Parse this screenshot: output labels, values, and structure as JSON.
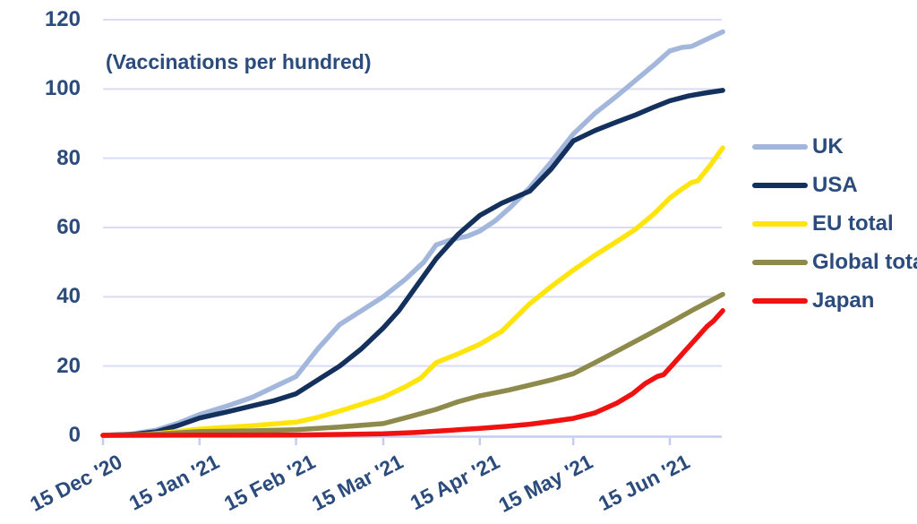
{
  "annotation": "(Vaccinations per hundred)",
  "colors": {
    "text": "#2A4B7C",
    "grid": "#D9DCF5",
    "axis": "#C7CBEE",
    "background": "#FFFFFF"
  },
  "chart_data": {
    "type": "line",
    "title": "(Vaccinations per hundred)",
    "ylabel": "Vaccinations per hundred",
    "xlabel": "",
    "ylim": [
      0,
      120
    ],
    "yticks": [
      0,
      20,
      40,
      60,
      80,
      100,
      120
    ],
    "grid": "horizontal",
    "legend_position": "right",
    "x_unit": "days since 15 Dec 2020",
    "x_tick_days": [
      0,
      31,
      62,
      90,
      121,
      151,
      182
    ],
    "x_tick_labels": [
      "15 Dec '20",
      "15 Jan '21",
      "15 Feb '21",
      "15 Mar '21",
      "15 Apr '21",
      "15 May '21",
      "15 Jun '21"
    ],
    "x_range_days": [
      0,
      199
    ],
    "series": [
      {
        "name": "UK",
        "color": "#A3B7DC",
        "points": [
          [
            0,
            0
          ],
          [
            8,
            0.2
          ],
          [
            17,
            1.5
          ],
          [
            24,
            3.5
          ],
          [
            31,
            6
          ],
          [
            40,
            8.5
          ],
          [
            48,
            11
          ],
          [
            55,
            14
          ],
          [
            62,
            17
          ],
          [
            69,
            25
          ],
          [
            76,
            32
          ],
          [
            83,
            36
          ],
          [
            90,
            40
          ],
          [
            97,
            45
          ],
          [
            103,
            50
          ],
          [
            107,
            55
          ],
          [
            112,
            56.5
          ],
          [
            117,
            57.5
          ],
          [
            121,
            59
          ],
          [
            126,
            62
          ],
          [
            131,
            66
          ],
          [
            137,
            71.5
          ],
          [
            144,
            79
          ],
          [
            151,
            87
          ],
          [
            158,
            93
          ],
          [
            165,
            98
          ],
          [
            171,
            102.5
          ],
          [
            177,
            107
          ],
          [
            182,
            111
          ],
          [
            186,
            112
          ],
          [
            189,
            112.3
          ],
          [
            193,
            114
          ],
          [
            199,
            116.5
          ]
        ]
      },
      {
        "name": "USA",
        "color": "#14315E",
        "points": [
          [
            0,
            0
          ],
          [
            10,
            0.3
          ],
          [
            17,
            1
          ],
          [
            24,
            2.8
          ],
          [
            31,
            5
          ],
          [
            40,
            6.8
          ],
          [
            48,
            8.5
          ],
          [
            55,
            10
          ],
          [
            62,
            12
          ],
          [
            69,
            16
          ],
          [
            76,
            20
          ],
          [
            83,
            25
          ],
          [
            90,
            31
          ],
          [
            95,
            36
          ],
          [
            99,
            41
          ],
          [
            103,
            46
          ],
          [
            107,
            51
          ],
          [
            114,
            58
          ],
          [
            121,
            63.5
          ],
          [
            128,
            67
          ],
          [
            137,
            70.5
          ],
          [
            144,
            77
          ],
          [
            151,
            85
          ],
          [
            158,
            88
          ],
          [
            165,
            90.5
          ],
          [
            171,
            92.5
          ],
          [
            177,
            94.8
          ],
          [
            182,
            96.6
          ],
          [
            188,
            98
          ],
          [
            193,
            98.8
          ],
          [
            199,
            99.6
          ]
        ]
      },
      {
        "name": "EU total",
        "color": "#FFE50D",
        "points": [
          [
            0,
            0
          ],
          [
            12,
            0.1
          ],
          [
            17,
            0.5
          ],
          [
            24,
            1.1
          ],
          [
            31,
            1.8
          ],
          [
            48,
            2.8
          ],
          [
            62,
            3.8
          ],
          [
            69,
            5.2
          ],
          [
            76,
            7
          ],
          [
            83,
            9
          ],
          [
            90,
            11
          ],
          [
            97,
            14
          ],
          [
            102,
            16.5
          ],
          [
            107,
            21
          ],
          [
            114,
            23.5
          ],
          [
            121,
            26.3
          ],
          [
            128,
            30
          ],
          [
            137,
            38
          ],
          [
            144,
            43
          ],
          [
            151,
            47.7
          ],
          [
            158,
            52
          ],
          [
            165,
            56
          ],
          [
            171,
            59.5
          ],
          [
            177,
            64
          ],
          [
            182,
            68.5
          ],
          [
            186,
            71.2
          ],
          [
            189,
            73
          ],
          [
            191,
            73.5
          ],
          [
            195,
            78
          ],
          [
            199,
            83
          ]
        ]
      },
      {
        "name": "Global total",
        "color": "#8D8A4B",
        "points": [
          [
            0,
            0
          ],
          [
            17,
            0.3
          ],
          [
            31,
            1.1
          ],
          [
            48,
            1.3
          ],
          [
            62,
            1.6
          ],
          [
            76,
            2.4
          ],
          [
            90,
            3.4
          ],
          [
            99,
            5.5
          ],
          [
            107,
            7.5
          ],
          [
            114,
            9.7
          ],
          [
            121,
            11.4
          ],
          [
            130,
            13
          ],
          [
            137,
            14.5
          ],
          [
            144,
            16
          ],
          [
            151,
            17.8
          ],
          [
            158,
            21
          ],
          [
            165,
            24.3
          ],
          [
            174,
            28.6
          ],
          [
            180,
            31.5
          ],
          [
            184,
            33.5
          ],
          [
            190,
            36.5
          ],
          [
            199,
            40.7
          ]
        ]
      },
      {
        "name": "Japan",
        "color": "#F01111",
        "points": [
          [
            0,
            0
          ],
          [
            30,
            0.05
          ],
          [
            62,
            0.1
          ],
          [
            76,
            0.25
          ],
          [
            90,
            0.45
          ],
          [
            100,
            0.8
          ],
          [
            107,
            1.2
          ],
          [
            114,
            1.6
          ],
          [
            121,
            2
          ],
          [
            130,
            2.6
          ],
          [
            137,
            3.2
          ],
          [
            144,
            4
          ],
          [
            151,
            4.9
          ],
          [
            158,
            6.5
          ],
          [
            165,
            9.3
          ],
          [
            170,
            12
          ],
          [
            174,
            14.9
          ],
          [
            178,
            17
          ],
          [
            180,
            17.5
          ],
          [
            182,
            19.5
          ],
          [
            186,
            23.5
          ],
          [
            190,
            27.5
          ],
          [
            194,
            31.5
          ],
          [
            196,
            33
          ],
          [
            199,
            36
          ]
        ]
      }
    ]
  }
}
